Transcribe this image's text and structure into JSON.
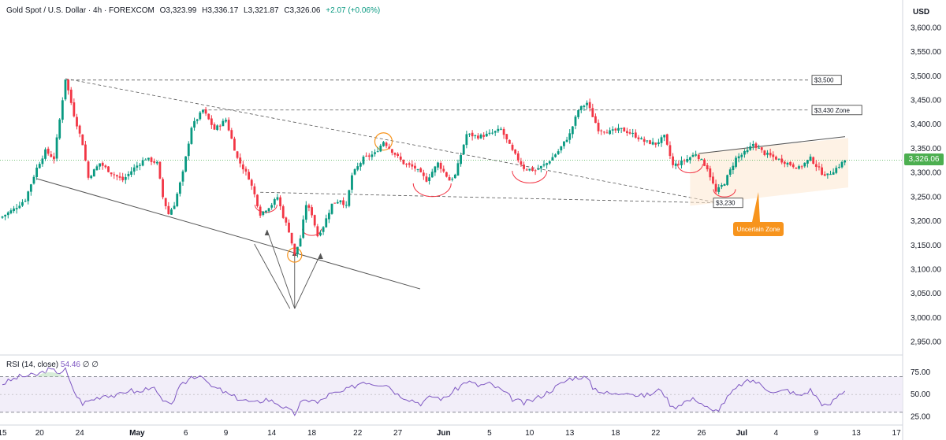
{
  "header": {
    "symbol": "Gold Spot / U.S. Dollar · 4h · FOREXCOM",
    "open": "O3,323.99",
    "high": "H3,336.17",
    "low": "L3,321.87",
    "close": "C3,326.06",
    "change": "+2.07 (+0.06%)"
  },
  "rsi_header": {
    "label": "RSI (14, close)",
    "value": "54.46",
    "extra": "∅ ∅"
  },
  "axis": {
    "unit": "USD",
    "last_price": "3,326.06"
  },
  "colors": {
    "up": "#089981",
    "down": "#f23645",
    "rsi": "#7e57c2",
    "last_price": "#4caf50",
    "callout": "#f7941d"
  },
  "chart_data": [
    {
      "type": "candlestick",
      "title": "Gold Spot / U.S. Dollar",
      "timeframe": "4h",
      "ylim": [
        2925,
        3625
      ],
      "y_ticks": [
        "3,600.00",
        "3,550.00",
        "3,500.00",
        "3,450.00",
        "3,400.00",
        "3,350.00",
        "3,300.00",
        "3,250.00",
        "3,200.00",
        "3,150.00",
        "3,100.00",
        "3,050.00",
        "3,000.00",
        "2,950.00"
      ],
      "y_tick_values": [
        3600,
        3550,
        3500,
        3450,
        3400,
        3350,
        3300,
        3250,
        3200,
        3150,
        3100,
        3050,
        3000,
        2950
      ],
      "x_ticks": [
        "15",
        "20",
        "24",
        "May",
        "6",
        "9",
        "14",
        "18",
        "22",
        "27",
        "Jun",
        "5",
        "10",
        "13",
        "18",
        "22",
        "26",
        "Jul",
        "4",
        "9",
        "13",
        "17"
      ],
      "x_tick_index": [
        0,
        13,
        27,
        47,
        64,
        78,
        94,
        108,
        124,
        138,
        154,
        170,
        184,
        198,
        214,
        228,
        244,
        258,
        270,
        284,
        298,
        312
      ],
      "close_path": [
        [
          0,
          3210
        ],
        [
          4,
          3225
        ],
        [
          8,
          3245
        ],
        [
          12,
          3310
        ],
        [
          15,
          3345
        ],
        [
          18,
          3330
        ],
        [
          20,
          3410
        ],
        [
          22,
          3495
        ],
        [
          25,
          3420
        ],
        [
          28,
          3360
        ],
        [
          30,
          3290
        ],
        [
          34,
          3320
        ],
        [
          38,
          3300
        ],
        [
          42,
          3285
        ],
        [
          46,
          3310
        ],
        [
          50,
          3330
        ],
        [
          54,
          3320
        ],
        [
          56,
          3250
        ],
        [
          58,
          3215
        ],
        [
          60,
          3235
        ],
        [
          63,
          3300
        ],
        [
          66,
          3395
        ],
        [
          70,
          3430
        ],
        [
          74,
          3390
        ],
        [
          78,
          3410
        ],
        [
          82,
          3330
        ],
        [
          86,
          3290
        ],
        [
          88,
          3255
        ],
        [
          90,
          3215
        ],
        [
          94,
          3235
        ],
        [
          96,
          3250
        ],
        [
          98,
          3210
        ],
        [
          100,
          3180
        ],
        [
          102,
          3130
        ],
        [
          104,
          3165
        ],
        [
          106,
          3235
        ],
        [
          108,
          3215
        ],
        [
          110,
          3170
        ],
        [
          112,
          3190
        ],
        [
          115,
          3235
        ],
        [
          118,
          3245
        ],
        [
          120,
          3230
        ],
        [
          122,
          3295
        ],
        [
          126,
          3330
        ],
        [
          130,
          3340
        ],
        [
          133,
          3365
        ],
        [
          136,
          3345
        ],
        [
          140,
          3320
        ],
        [
          144,
          3310
        ],
        [
          148,
          3285
        ],
        [
          152,
          3320
        ],
        [
          156,
          3285
        ],
        [
          158,
          3295
        ],
        [
          162,
          3380
        ],
        [
          166,
          3375
        ],
        [
          170,
          3380
        ],
        [
          174,
          3390
        ],
        [
          178,
          3345
        ],
        [
          182,
          3310
        ],
        [
          186,
          3305
        ],
        [
          190,
          3320
        ],
        [
          194,
          3345
        ],
        [
          198,
          3380
        ],
        [
          201,
          3430
        ],
        [
          204,
          3445
        ],
        [
          208,
          3390
        ],
        [
          212,
          3385
        ],
        [
          216,
          3390
        ],
        [
          220,
          3380
        ],
        [
          224,
          3365
        ],
        [
          228,
          3360
        ],
        [
          231,
          3375
        ],
        [
          234,
          3315
        ],
        [
          238,
          3325
        ],
        [
          242,
          3340
        ],
        [
          246,
          3310
        ],
        [
          249,
          3260
        ],
        [
          252,
          3280
        ],
        [
          256,
          3330
        ],
        [
          260,
          3345
        ],
        [
          262,
          3360
        ],
        [
          266,
          3340
        ],
        [
          270,
          3330
        ],
        [
          274,
          3320
        ],
        [
          278,
          3310
        ],
        [
          282,
          3330
        ],
        [
          286,
          3300
        ],
        [
          288,
          3295
        ],
        [
          292,
          3315
        ],
        [
          294,
          3326.06
        ]
      ],
      "overlays": {
        "dashed_levels": [
          {
            "label": "$3,500",
            "price": 3492
          },
          {
            "label": "$3,430 Zone",
            "price": 3430
          },
          {
            "label": "$3,230",
            "price": 3238
          }
        ],
        "callout": "Uncertain Zone"
      }
    },
    {
      "type": "line",
      "title": "RSI (14, close)",
      "ylim": [
        20,
        82
      ],
      "y_ticks": [
        "75.00",
        "50.00",
        "25.00"
      ],
      "y_tick_values": [
        75,
        50,
        25
      ],
      "bands": [
        70,
        30
      ],
      "midline": 50,
      "path": [
        [
          0,
          62
        ],
        [
          6,
          70
        ],
        [
          12,
          72
        ],
        [
          16,
          78
        ],
        [
          20,
          75
        ],
        [
          22,
          78
        ],
        [
          24,
          60
        ],
        [
          26,
          48
        ],
        [
          28,
          40
        ],
        [
          32,
          45
        ],
        [
          36,
          50
        ],
        [
          40,
          48
        ],
        [
          44,
          55
        ],
        [
          48,
          52
        ],
        [
          52,
          60
        ],
        [
          56,
          42
        ],
        [
          58,
          38
        ],
        [
          60,
          45
        ],
        [
          62,
          58
        ],
        [
          66,
          70
        ],
        [
          70,
          72
        ],
        [
          72,
          60
        ],
        [
          76,
          55
        ],
        [
          80,
          48
        ],
        [
          84,
          44
        ],
        [
          88,
          40
        ],
        [
          92,
          45
        ],
        [
          96,
          40
        ],
        [
          100,
          32
        ],
        [
          102,
          28
        ],
        [
          104,
          40
        ],
        [
          108,
          45
        ],
        [
          110,
          40
        ],
        [
          114,
          50
        ],
        [
          118,
          52
        ],
        [
          122,
          58
        ],
        [
          126,
          65
        ],
        [
          130,
          62
        ],
        [
          134,
          62
        ],
        [
          138,
          50
        ],
        [
          142,
          45
        ],
        [
          146,
          40
        ],
        [
          150,
          48
        ],
        [
          154,
          45
        ],
        [
          158,
          55
        ],
        [
          162,
          65
        ],
        [
          166,
          60
        ],
        [
          170,
          62
        ],
        [
          174,
          55
        ],
        [
          178,
          45
        ],
        [
          182,
          40
        ],
        [
          186,
          45
        ],
        [
          190,
          52
        ],
        [
          194,
          60
        ],
        [
          198,
          68
        ],
        [
          202,
          70
        ],
        [
          204,
          68
        ],
        [
          206,
          58
        ],
        [
          210,
          52
        ],
        [
          214,
          50
        ],
        [
          218,
          54
        ],
        [
          222,
          48
        ],
        [
          226,
          50
        ],
        [
          230,
          56
        ],
        [
          232,
          44
        ],
        [
          234,
          35
        ],
        [
          238,
          42
        ],
        [
          242,
          45
        ],
        [
          246,
          35
        ],
        [
          248,
          30
        ],
        [
          250,
          34
        ],
        [
          254,
          50
        ],
        [
          258,
          62
        ],
        [
          262,
          66
        ],
        [
          266,
          58
        ],
        [
          270,
          52
        ],
        [
          274,
          55
        ],
        [
          278,
          48
        ],
        [
          282,
          55
        ],
        [
          286,
          40
        ],
        [
          288,
          36
        ],
        [
          292,
          50
        ],
        [
          294,
          54.46
        ]
      ]
    }
  ]
}
